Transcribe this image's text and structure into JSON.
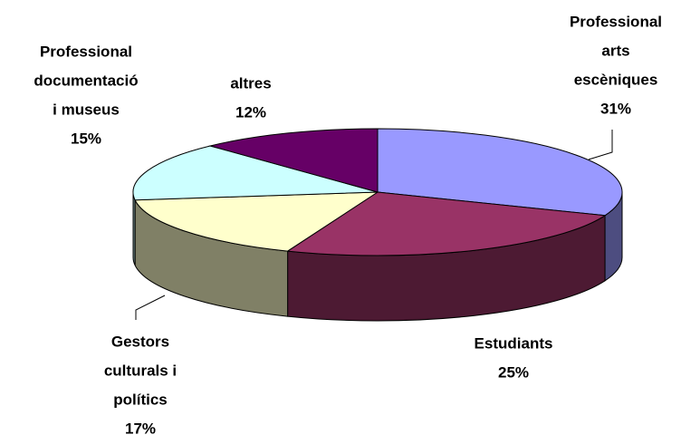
{
  "chart_data": {
    "type": "pie3d",
    "categories": [
      [
        "Professional",
        "arts",
        "escèniques"
      ],
      [
        "Estudiants"
      ],
      [
        "Gestors",
        "culturals i",
        "polítics"
      ],
      [
        "Professional",
        "documentació",
        "i museus"
      ],
      [
        "altres"
      ]
    ],
    "values": [
      31,
      25,
      17,
      15,
      12
    ],
    "value_labels": [
      "31%",
      "25%",
      "17%",
      "15%",
      "12%"
    ],
    "colors": [
      "#9999ff",
      "#993366",
      "#ffffcc",
      "#ccffff",
      "#660066"
    ],
    "side_colors": [
      "#4d4d80",
      "#4d1a33",
      "#808066",
      "#668080",
      "#330033"
    ]
  }
}
